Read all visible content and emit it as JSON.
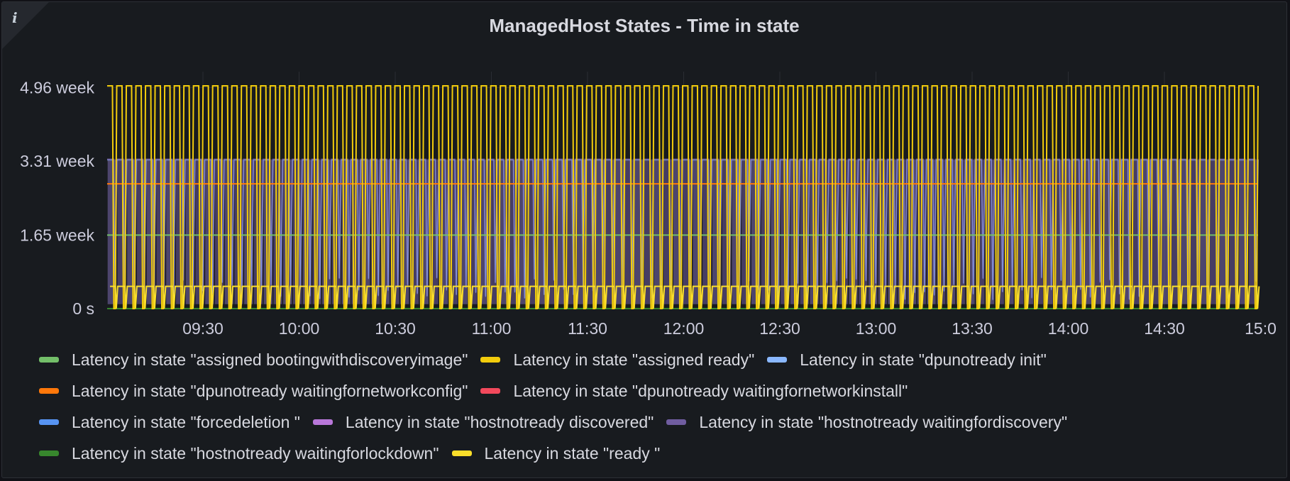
{
  "panel": {
    "title": "ManagedHost States - Time in state",
    "info_icon": "info-icon"
  },
  "chart_data": {
    "type": "line",
    "title": "ManagedHost States - Time in state",
    "xlabel": "",
    "ylabel": "",
    "x_ticks": [
      "09:30",
      "10:00",
      "10:30",
      "11:00",
      "11:30",
      "12:00",
      "12:30",
      "13:00",
      "13:30",
      "14:00",
      "14:30",
      "15:0"
    ],
    "y_ticks": [
      "0 s",
      "1.65 week",
      "3.31 week",
      "4.96 week"
    ],
    "y_tick_values_weeks": [
      0,
      1.65,
      3.31,
      4.96
    ],
    "ylim_weeks": [
      0,
      5.0
    ],
    "x_range": [
      "09:07",
      "15:00"
    ],
    "grid": true,
    "legend_position": "bottom",
    "series": [
      {
        "name": "Latency in state \"assigned bootingwithdiscoveryimage\"",
        "color": "#73bf69",
        "values_weeks": [
          1.65
        ]
      },
      {
        "name": "Latency in state \"assigned ready\"",
        "color": "#f2cc0c",
        "values_weeks": [
          5.0,
          0
        ]
      },
      {
        "name": "Latency in state \"dpunotready init\"",
        "color": "#8ab8ff",
        "values_weeks": [
          3.3,
          0
        ]
      },
      {
        "name": "Latency in state \"dpunotready waitingfornetworkconfig\"",
        "color": "#ff780a",
        "values_weeks": [
          2.8
        ]
      },
      {
        "name": "Latency in state \"dpunotready waitingfornetworkinstall\"",
        "color": "#f2495c",
        "values_weeks": [
          3.3,
          0
        ]
      },
      {
        "name": "Latency in state \"forcedeletion \"",
        "color": "#5794f2",
        "values_weeks": [
          3.3,
          0
        ]
      },
      {
        "name": "Latency in state \"hostnotready discovered\"",
        "color": "#b877d9",
        "values_weeks": [
          3.3,
          0
        ]
      },
      {
        "name": "Latency in state \"hostnotready waitingfordiscovery\"",
        "color": "#705da0",
        "values_weeks": [
          3.35,
          0
        ]
      },
      {
        "name": "Latency in state \"hostnotready waitingforlockdown\"",
        "color": "#37872d",
        "values_weeks": [
          0
        ]
      },
      {
        "name": "Latency in state \"ready \"",
        "color": "#fade2a",
        "values_weeks": [
          0.5,
          0
        ]
      }
    ]
  },
  "legend": {
    "rows": [
      [
        {
          "label": "Latency in state \"assigned bootingwithdiscoveryimage\"",
          "color": "#73bf69"
        },
        {
          "label": "Latency in state \"assigned ready\"",
          "color": "#f2cc0c"
        },
        {
          "label": "Latency in state \"dpunotready init\"",
          "color": "#8ab8ff"
        }
      ],
      [
        {
          "label": "Latency in state \"dpunotready waitingfornetworkconfig\"",
          "color": "#ff780a"
        },
        {
          "label": "Latency in state \"dpunotready waitingfornetworkinstall\"",
          "color": "#f2495c"
        }
      ],
      [
        {
          "label": "Latency in state \"forcedeletion \"",
          "color": "#5794f2"
        },
        {
          "label": "Latency in state \"hostnotready discovered\"",
          "color": "#b877d9"
        },
        {
          "label": "Latency in state \"hostnotready waitingfordiscovery\"",
          "color": "#705da0"
        }
      ],
      [
        {
          "label": "Latency in state \"hostnotready waitingforlockdown\"",
          "color": "#37872d"
        },
        {
          "label": "Latency in state \"ready \"",
          "color": "#fade2a"
        }
      ]
    ]
  }
}
